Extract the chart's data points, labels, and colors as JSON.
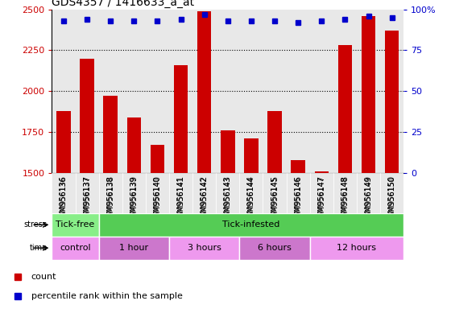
{
  "title": "GDS4357 / 1416633_a_at",
  "samples": [
    "GSM956136",
    "GSM956137",
    "GSM956138",
    "GSM956139",
    "GSM956140",
    "GSM956141",
    "GSM956142",
    "GSM956143",
    "GSM956144",
    "GSM956145",
    "GSM956146",
    "GSM956147",
    "GSM956148",
    "GSM956149",
    "GSM956150"
  ],
  "counts": [
    1880,
    2200,
    1970,
    1840,
    1670,
    2160,
    2490,
    1760,
    1710,
    1880,
    1580,
    1510,
    2280,
    2460,
    2370
  ],
  "percentile_ranks": [
    93,
    94,
    93,
    93,
    93,
    94,
    97,
    93,
    93,
    93,
    92,
    93,
    94,
    96,
    95
  ],
  "ylim_left": [
    1500,
    2500
  ],
  "ylim_right": [
    0,
    100
  ],
  "bar_color": "#CC0000",
  "dot_color": "#0000CC",
  "bg_color": "#E8E8E8",
  "stress_groups": [
    {
      "label": "Tick-free",
      "start": 0,
      "end": 2,
      "color": "#88EE88"
    },
    {
      "label": "Tick-infested",
      "start": 2,
      "end": 15,
      "color": "#55CC55"
    }
  ],
  "time_groups": [
    {
      "label": "control",
      "start": 0,
      "end": 2,
      "color": "#EE99EE"
    },
    {
      "label": "1 hour",
      "start": 2,
      "end": 5,
      "color": "#CC77CC"
    },
    {
      "label": "3 hours",
      "start": 5,
      "end": 8,
      "color": "#EE99EE"
    },
    {
      "label": "6 hours",
      "start": 8,
      "end": 11,
      "color": "#CC77CC"
    },
    {
      "label": "12 hours",
      "start": 11,
      "end": 15,
      "color": "#EE99EE"
    }
  ],
  "left_yticks": [
    1500,
    1750,
    2000,
    2250,
    2500
  ],
  "right_yticks": [
    0,
    25,
    50,
    75,
    100
  ],
  "legend": [
    {
      "label": "count",
      "color": "#CC0000"
    },
    {
      "label": "percentile rank within the sample",
      "color": "#0000CC"
    }
  ]
}
